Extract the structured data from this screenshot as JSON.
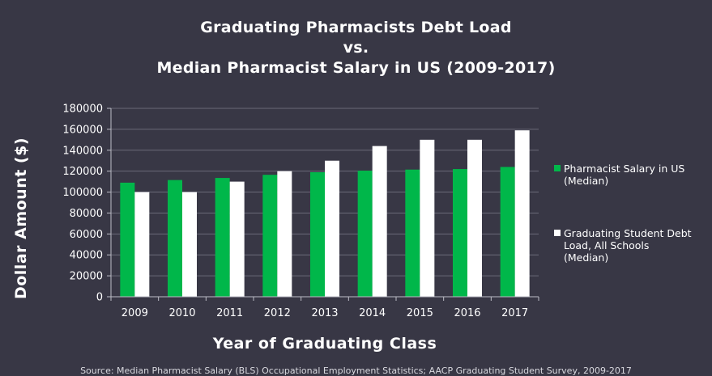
{
  "title_lines": [
    "Graduating Pharmacists Debt Load",
    "vs.",
    "Median Pharmacist Salary in US (2009-2017)"
  ],
  "colors": {
    "background": "#383745",
    "salary_series": "#00b74a",
    "debt_series": "#ffffff",
    "axis": "#bdbdc6",
    "gridline": "#6a6a78"
  },
  "chart_data": {
    "type": "bar",
    "title": "Graduating Pharmacists Debt Load vs. Median Pharmacist Salary in US (2009-2017)",
    "xlabel": "Year of Graduating Class",
    "ylabel": "Dollar Amount ($)",
    "categories": [
      "2009",
      "2010",
      "2011",
      "2012",
      "2013",
      "2014",
      "2015",
      "2016",
      "2017"
    ],
    "series": [
      {
        "name": "Pharmacist Salary in US (Median)",
        "legend_lines": [
          "Pharmacist Salary in US",
          "(Median)"
        ],
        "values": [
          109000,
          111500,
          113500,
          116500,
          119000,
          120500,
          121500,
          122000,
          124000
        ]
      },
      {
        "name": "Graduating Student Debt Load, All Schools (Median)",
        "legend_lines": [
          "Graduating Student Debt",
          "Load, All Schools",
          "(Median)"
        ],
        "values": [
          100000,
          100000,
          110000,
          120000,
          130000,
          144000,
          150000,
          150000,
          159000
        ]
      }
    ],
    "ylim": [
      0,
      180000
    ],
    "yticks": [
      0,
      20000,
      40000,
      60000,
      80000,
      100000,
      120000,
      140000,
      160000,
      180000
    ],
    "grid": true,
    "legend_position": "right"
  },
  "source_text": "Source: Median Pharmacist Salary (BLS) Occupational Employment Statistics; AACP Graduating Student Survey, 2009-2017"
}
